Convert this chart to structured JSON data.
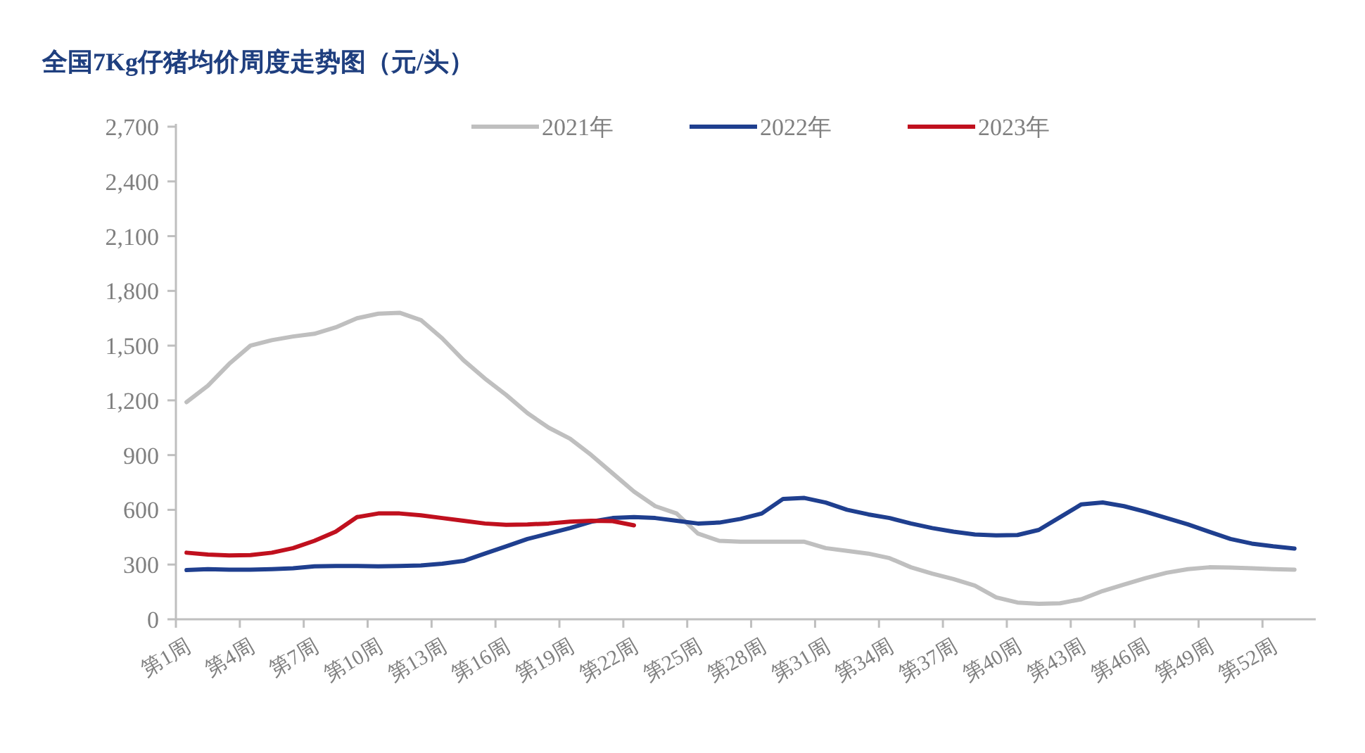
{
  "chart_data": {
    "type": "line",
    "title": "全国7Kg仔猪均价周度走势图（元/头）",
    "categories": [
      "第1周",
      null,
      null,
      "第4周",
      null,
      null,
      "第7周",
      null,
      null,
      "第10周",
      null,
      null,
      "第13周",
      null,
      null,
      "第16周",
      null,
      null,
      "第19周",
      null,
      null,
      "第22周",
      null,
      null,
      "第25周",
      null,
      null,
      "第28周",
      null,
      null,
      "第31周",
      null,
      null,
      "第34周",
      null,
      null,
      "第37周",
      null,
      null,
      "第40周",
      null,
      null,
      "第43周",
      null,
      null,
      "第46周",
      null,
      null,
      "第49周",
      null,
      null,
      "第52周",
      null
    ],
    "series": [
      {
        "name": "2021年",
        "color": "#bfbfbf",
        "values": [
          1190,
          1280,
          1400,
          1500,
          1530,
          1550,
          1565,
          1600,
          1650,
          1675,
          1680,
          1640,
          1540,
          1420,
          1320,
          1230,
          1130,
          1050,
          990,
          900,
          800,
          700,
          620,
          580,
          470,
          430,
          425,
          425,
          425,
          425,
          390,
          375,
          360,
          335,
          285,
          250,
          220,
          185,
          120,
          92,
          85,
          88,
          110,
          155,
          190,
          225,
          255,
          275,
          285,
          283,
          280,
          275,
          272
        ]
      },
      {
        "name": "2022年",
        "color": "#1f3f8f",
        "values": [
          270,
          275,
          272,
          272,
          275,
          280,
          290,
          292,
          292,
          290,
          292,
          295,
          305,
          320,
          360,
          400,
          440,
          470,
          500,
          535,
          555,
          560,
          555,
          540,
          525,
          530,
          550,
          580,
          660,
          665,
          640,
          600,
          575,
          555,
          525,
          500,
          480,
          465,
          460,
          462,
          490,
          560,
          630,
          640,
          620,
          590,
          555,
          520,
          480,
          440,
          415,
          400,
          388
        ]
      },
      {
        "name": "2023年",
        "color": "#c0101e",
        "values": [
          365,
          355,
          350,
          352,
          365,
          390,
          430,
          480,
          560,
          580,
          580,
          570,
          555,
          540,
          525,
          518,
          520,
          525,
          535,
          540,
          538,
          515,
          null,
          null,
          null,
          null,
          null,
          null,
          null,
          null,
          null,
          null,
          null,
          null,
          null,
          null,
          null,
          null,
          null,
          null,
          null,
          null,
          null,
          null,
          null,
          null,
          null,
          null,
          null,
          null,
          null,
          null,
          null
        ]
      }
    ],
    "ylim": [
      0,
      2700
    ],
    "yticks": [
      {
        "value": 0,
        "label": "0"
      },
      {
        "value": 300,
        "label": "300"
      },
      {
        "value": 600,
        "label": "600"
      },
      {
        "value": 900,
        "label": "900"
      },
      {
        "value": 1200,
        "label": "1,200"
      },
      {
        "value": 1500,
        "label": "1,500"
      },
      {
        "value": 1800,
        "label": "1,800"
      },
      {
        "value": 2100,
        "label": "2,100"
      },
      {
        "value": 2400,
        "label": "2,400"
      },
      {
        "value": 2700,
        "label": "2,700"
      }
    ],
    "grid": false,
    "legend": "top",
    "marker": "none",
    "line_style": "solid"
  }
}
